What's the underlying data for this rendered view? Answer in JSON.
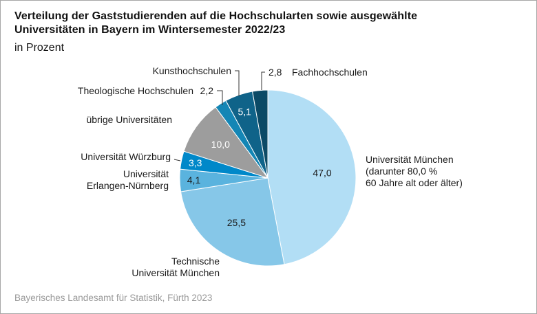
{
  "title_line1": "Verteilung der Gaststudierenden auf die Hochschularten sowie ausgewählte",
  "title_line2": "Universitäten in Bayern im Wintersemester 2022/23",
  "subtitle": "in Prozent",
  "source": "Bayerisches Landesamt für Statistik, Fürth 2023",
  "chart_data": {
    "type": "pie",
    "title": "Verteilung der Gaststudierenden auf die Hochschularten sowie ausgewählte Universitäten in Bayern im Wintersemester 2022/23",
    "unit": "in Prozent",
    "start": "12 o'clock",
    "direction": "clockwise",
    "slices": [
      {
        "name": "Universität München",
        "label_lines": [
          "Universität München",
          "(darunter 80,0 %",
          "60 Jahre alt oder älter)"
        ],
        "value": 47.0,
        "value_label": "47,0",
        "color": "#b2def5",
        "value_color": "#1a1a1a"
      },
      {
        "name": "Technische Universität München",
        "label_lines": [
          "Technische",
          "Universität München"
        ],
        "value": 25.5,
        "value_label": "25,5",
        "color": "#86c7e8",
        "value_color": "#1a1a1a"
      },
      {
        "name": "Universität Erlangen-Nürnberg",
        "label_lines": [
          "Universität",
          "Erlangen-Nürnberg"
        ],
        "value": 4.1,
        "value_label": "4,1",
        "color": "#5ab3de",
        "value_color": "#1a1a1a"
      },
      {
        "name": "Universität Würzburg",
        "label_lines": [
          "Universität Würzburg"
        ],
        "value": 3.3,
        "value_label": "3,3",
        "color": "#0088c9",
        "value_color": "#ffffff"
      },
      {
        "name": "übrige Universitäten",
        "label_lines": [
          "übrige Universitäten"
        ],
        "value": 10.0,
        "value_label": "10,0",
        "color": "#9d9d9d",
        "value_color": "#ffffff"
      },
      {
        "name": "Theologische Hochschulen",
        "label_lines": [
          "Theologische Hochschulen"
        ],
        "value": 2.2,
        "value_label": "2,2",
        "color": "#1486b5",
        "value_color": "#1a1a1a"
      },
      {
        "name": "Kunsthochschulen",
        "label_lines": [
          "Kunsthochschulen"
        ],
        "value": 5.1,
        "value_label": "5,1",
        "color": "#0f6389",
        "value_color": "#ffffff"
      },
      {
        "name": "Fachhochschulen",
        "label_lines": [
          "Fachhochschulen"
        ],
        "value": 2.8,
        "value_label": "2,8",
        "color": "#0b4a66",
        "value_color": "#1a1a1a"
      }
    ]
  }
}
